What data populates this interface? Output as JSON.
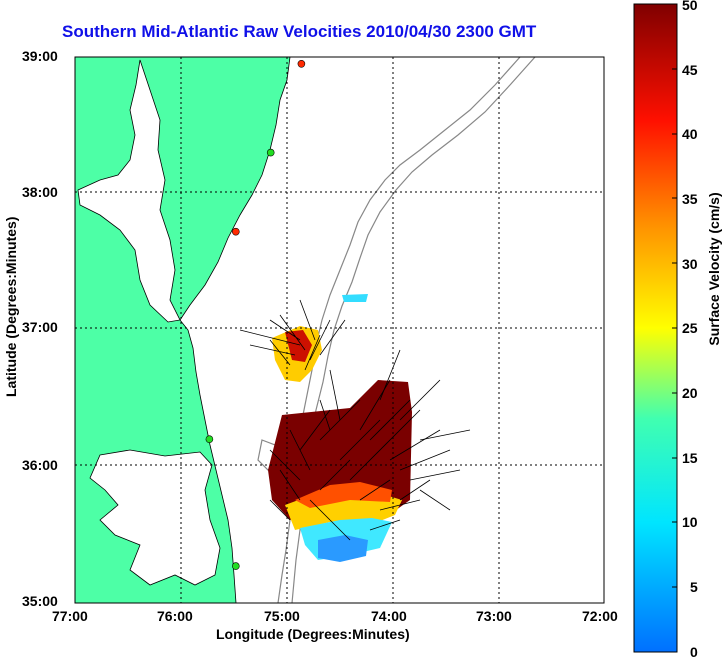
{
  "title": "Southern Mid-Atlantic Raw Velocities 2010/04/30 2300 GMT",
  "axes": {
    "xlabel": "Longitude (Degrees:Minutes)",
    "ylabel": "Latitude (Degrees:Minutes)",
    "x_ticks": [
      "77:00",
      "76:00",
      "75:00",
      "74:00",
      "73:00",
      "72:00"
    ],
    "y_ticks": [
      "39:00",
      "38:00",
      "37:00",
      "36:00",
      "35:00"
    ],
    "xlim": [
      -77,
      -72
    ],
    "ylim": [
      35,
      39
    ]
  },
  "colorbar": {
    "label": "Surface Velocity (cm/s)",
    "ticks": [
      "50",
      "45",
      "40",
      "35",
      "30",
      "25",
      "20",
      "15",
      "10",
      "5",
      "0"
    ],
    "range": [
      0,
      50
    ]
  },
  "colors": {
    "land": "#4dffa6",
    "title": "#1010e8",
    "max_velocity": "#800000",
    "min_velocity": "#0070ff"
  },
  "stations": [
    {
      "lon": -74.86,
      "lat": 38.95,
      "color": "#ff2a00"
    },
    {
      "lon": -75.15,
      "lat": 38.3,
      "color": "#22dd22"
    },
    {
      "lon": -75.48,
      "lat": 37.72,
      "color": "#ff2a00"
    },
    {
      "lon": -75.73,
      "lat": 36.2,
      "color": "#22dd22"
    },
    {
      "lon": -75.48,
      "lat": 35.27,
      "color": "#22dd22"
    }
  ]
}
